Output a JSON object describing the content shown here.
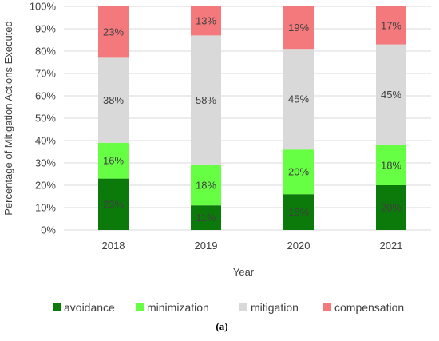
{
  "chart_data": {
    "type": "bar",
    "stacked": true,
    "categories": [
      "2018",
      "2019",
      "2020",
      "2021"
    ],
    "series": [
      {
        "name": "avoidance",
        "color": "#0b7a0b",
        "values": [
          23,
          11,
          16,
          20
        ],
        "labels": [
          "23%",
          "11%",
          "16%",
          "20%"
        ]
      },
      {
        "name": "minimization",
        "color": "#66ff44",
        "values": [
          16,
          18,
          20,
          18
        ],
        "labels": [
          "16%",
          "18%",
          "20%",
          "18%"
        ]
      },
      {
        "name": "mitigation",
        "color": "#d9d9d9",
        "values": [
          38,
          58,
          45,
          45
        ],
        "labels": [
          "38%",
          "58%",
          "45%",
          "45%"
        ]
      },
      {
        "name": "compensation",
        "color": "#f4797d",
        "values": [
          23,
          13,
          19,
          17
        ],
        "labels": [
          "23%",
          "13%",
          "19%",
          "17%"
        ]
      }
    ],
    "xlabel": "Year",
    "ylabel": "Percentage of Mitigation Actions Executed",
    "ylim": [
      0,
      100
    ],
    "yticks": [
      "0%",
      "10%",
      "20%",
      "30%",
      "40%",
      "50%",
      "60%",
      "70%",
      "80%",
      "90%",
      "100%"
    ],
    "grid": true,
    "legend_position": "bottom"
  },
  "caption": "(a)"
}
